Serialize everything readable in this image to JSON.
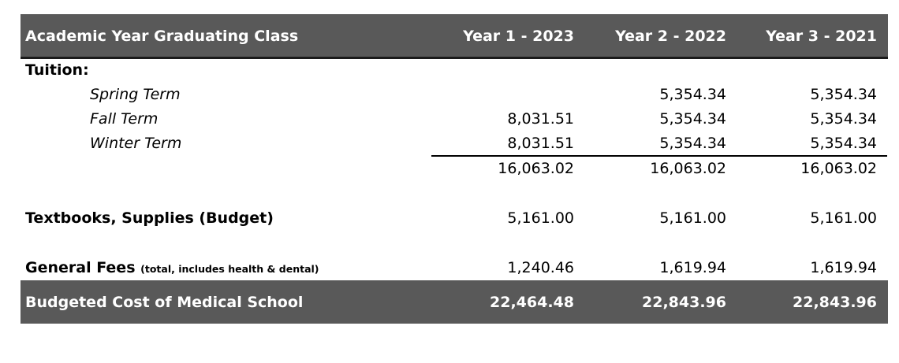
{
  "header": {
    "title": "Academic Year Graduating Class",
    "columns": [
      "Year 1 - 2023",
      "Year 2 - 2022",
      "Year 3 - 2021"
    ]
  },
  "tuition": {
    "label": "Tuition:",
    "terms": [
      {
        "name": "Spring Term",
        "values": [
          "",
          "5,354.34",
          "5,354.34"
        ]
      },
      {
        "name": "Fall Term",
        "values": [
          "8,031.51",
          "5,354.34",
          "5,354.34"
        ]
      },
      {
        "name": "Winter Term",
        "values": [
          "8,031.51",
          "5,354.34",
          "5,354.34"
        ]
      }
    ],
    "subtotal": [
      "16,063.02",
      "16,063.02",
      "16,063.02"
    ]
  },
  "textbooks": {
    "label": "Textbooks, Supplies (Budget)",
    "values": [
      "5,161.00",
      "5,161.00",
      "5,161.00"
    ]
  },
  "fees": {
    "label": "General Fees",
    "note": "(total, includes health & dental)",
    "values": [
      "1,240.46",
      "1,619.94",
      "1,619.94"
    ]
  },
  "total": {
    "label": "Budgeted Cost of Medical School",
    "values": [
      "22,464.48",
      "22,843.96",
      "22,843.96"
    ]
  },
  "colors": {
    "band": "#595959",
    "band_text": "#ffffff",
    "text": "#000000"
  }
}
